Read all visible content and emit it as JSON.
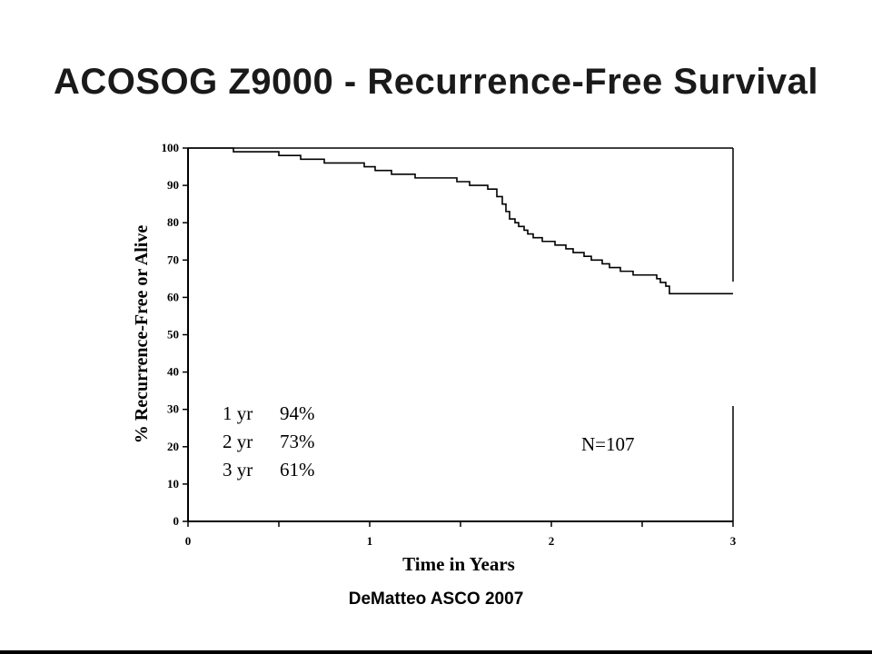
{
  "slide": {
    "title": "ACOSOG Z9000 - Recurrence-Free Survival",
    "citation": "DeMatteo ASCO 2007"
  },
  "chart_data": {
    "type": "line",
    "title": "",
    "xlabel": "Time in Years",
    "ylabel": "% Recurrence-Free or Alive",
    "xlim": [
      0,
      3
    ],
    "ylim": [
      0,
      100
    ],
    "xticks": [
      "0",
      "1",
      "2",
      "3"
    ],
    "yticks": [
      "0",
      "10",
      "20",
      "30",
      "40",
      "50",
      "60",
      "70",
      "80",
      "90",
      "100"
    ],
    "grid": false,
    "series": [
      {
        "x": [
          0,
          0.25,
          0.5,
          0.62,
          0.75,
          0.97,
          1.03,
          1.12,
          1.25,
          1.48,
          1.55,
          1.65,
          1.7,
          1.73,
          1.75,
          1.77,
          1.8,
          1.82,
          1.85,
          1.87,
          1.9,
          1.95,
          2.02,
          2.08,
          2.12,
          2.18,
          2.22,
          2.28,
          2.32,
          2.38,
          2.45,
          2.58,
          2.6,
          2.63,
          2.65,
          3.0
        ],
        "y": [
          100,
          99,
          98,
          97,
          96,
          95,
          94,
          93,
          92,
          91,
          90,
          89,
          87,
          85,
          83,
          81,
          80,
          79,
          78,
          77,
          76,
          75,
          74,
          73,
          72,
          71,
          70,
          69,
          68,
          67,
          66,
          65,
          64,
          63,
          61,
          61
        ]
      }
    ],
    "annotations": {
      "rates": [
        {
          "period": "1 yr",
          "value": "94%"
        },
        {
          "period": "2 yr",
          "value": "73%"
        },
        {
          "period": "3 yr",
          "value": "61%"
        }
      ],
      "n_label": "N=107"
    }
  }
}
